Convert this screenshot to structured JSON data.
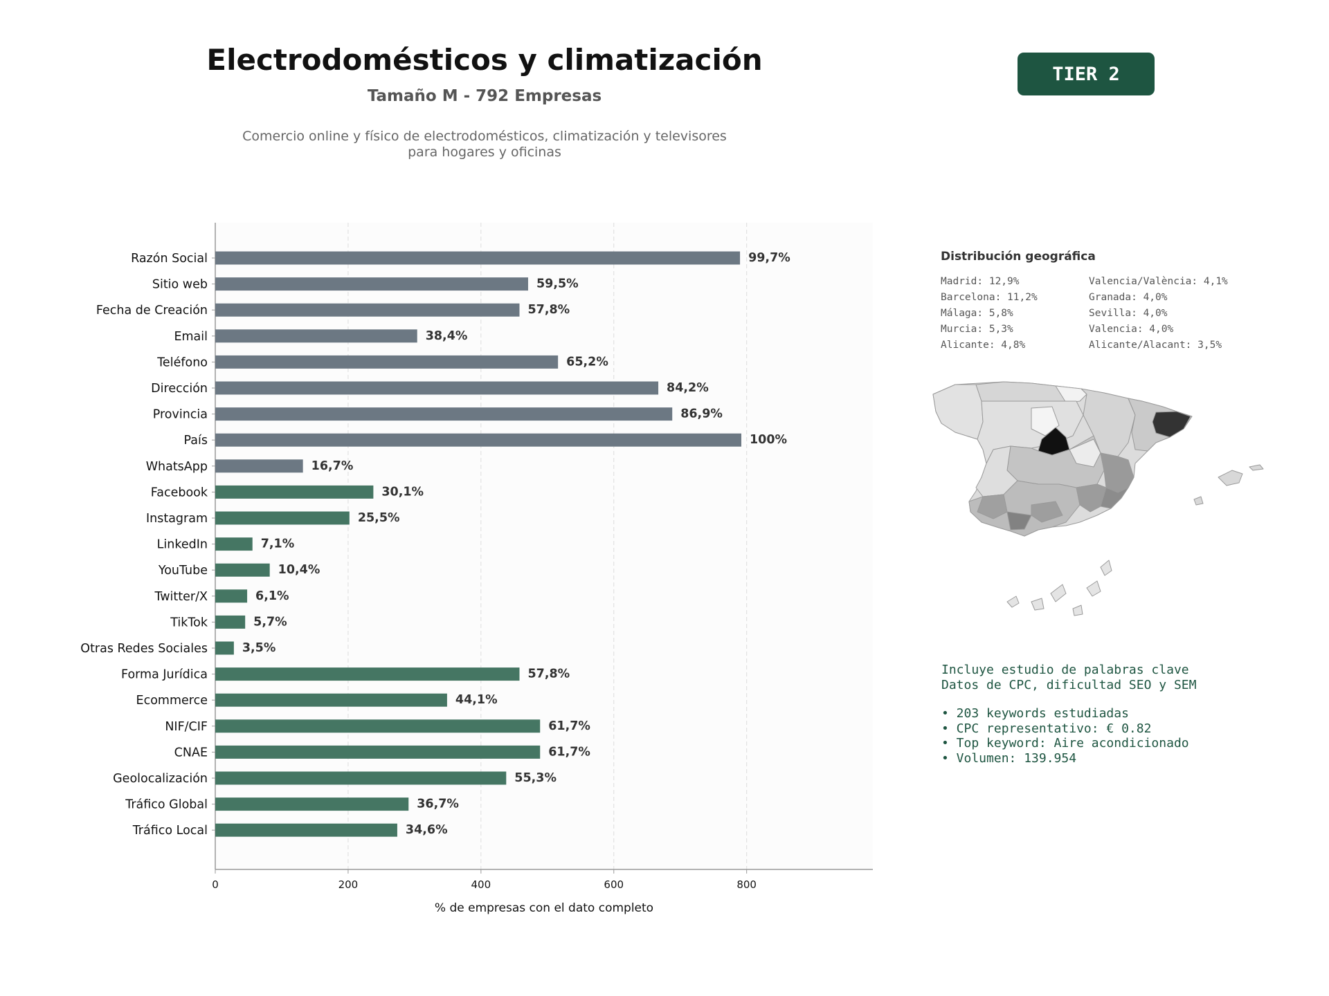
{
  "header": {
    "title": "Electrodomésticos y climatización",
    "subtitle": "Tamaño M - 792 Empresas",
    "description": "Comercio online y físico de electrodomésticos, climatización y televisores para hogares y oficinas",
    "tier_badge": "TIER 2"
  },
  "colors": {
    "gray_bar": "#6c7883",
    "green_bar": "#457663",
    "brand_green": "#1e5541",
    "plot_bg": "#fcfcfc"
  },
  "chart_data": {
    "type": "bar",
    "orientation": "horizontal",
    "xlabel": "% de empresas con el dato completo",
    "xlim": [
      0,
      990
    ],
    "xticks": [
      0,
      200,
      400,
      600,
      800
    ],
    "grid": "vertical dashed",
    "categories": [
      "Razón Social",
      "Sitio web",
      "Fecha de Creación",
      "Email",
      "Teléfono",
      "Dirección",
      "Provincia",
      "País",
      "WhatsApp",
      "Facebook",
      "Instagram",
      "LinkedIn",
      "YouTube",
      "Twitter/X",
      "TikTok",
      "Otras Redes Sociales",
      "Forma Jurídica",
      "Ecommerce",
      "NIF/CIF",
      "CNAE",
      "Geolocalización",
      "Tráfico Global",
      "Tráfico Local"
    ],
    "values": [
      790,
      471,
      458,
      304,
      516,
      667,
      688,
      792,
      132,
      238,
      202,
      56,
      82,
      48,
      45,
      28,
      458,
      349,
      489,
      489,
      438,
      291,
      274
    ],
    "labels": [
      "99,7%",
      "59,5%",
      "57,8%",
      "38,4%",
      "65,2%",
      "84,2%",
      "86,9%",
      "100%",
      "16,7%",
      "30,1%",
      "25,5%",
      "7,1%",
      "10,4%",
      "6,1%",
      "5,7%",
      "3,5%",
      "57,8%",
      "44,1%",
      "61,7%",
      "61,7%",
      "55,3%",
      "36,7%",
      "34,6%"
    ],
    "bar_colors": [
      "gray",
      "gray",
      "gray",
      "gray",
      "gray",
      "gray",
      "gray",
      "gray",
      "gray",
      "green",
      "green",
      "green",
      "green",
      "green",
      "green",
      "green",
      "green",
      "green",
      "green",
      "green",
      "green",
      "green",
      "green"
    ]
  },
  "geo": {
    "title": "Distribución geográfica",
    "items": [
      "Madrid: 12,9%",
      "Valencia/València: 4,1%",
      "Barcelona: 11,2%",
      "Granada: 4,0%",
      "Málaga: 5,8%",
      "Sevilla: 4,0%",
      "Murcia: 5,3%",
      "Valencia: 4,0%",
      "Alicante: 4,8%",
      "Alicante/Alacant: 3,5%"
    ]
  },
  "keywords": {
    "line1": "Incluye estudio de palabras clave",
    "line2": "Datos de CPC, dificultad SEO y SEM",
    "bullets": [
      "• 203 keywords estudiadas",
      "• CPC representativo: € 0.82",
      "• Top keyword: Aire acondicionado",
      "• Volumen: 139.954"
    ]
  }
}
